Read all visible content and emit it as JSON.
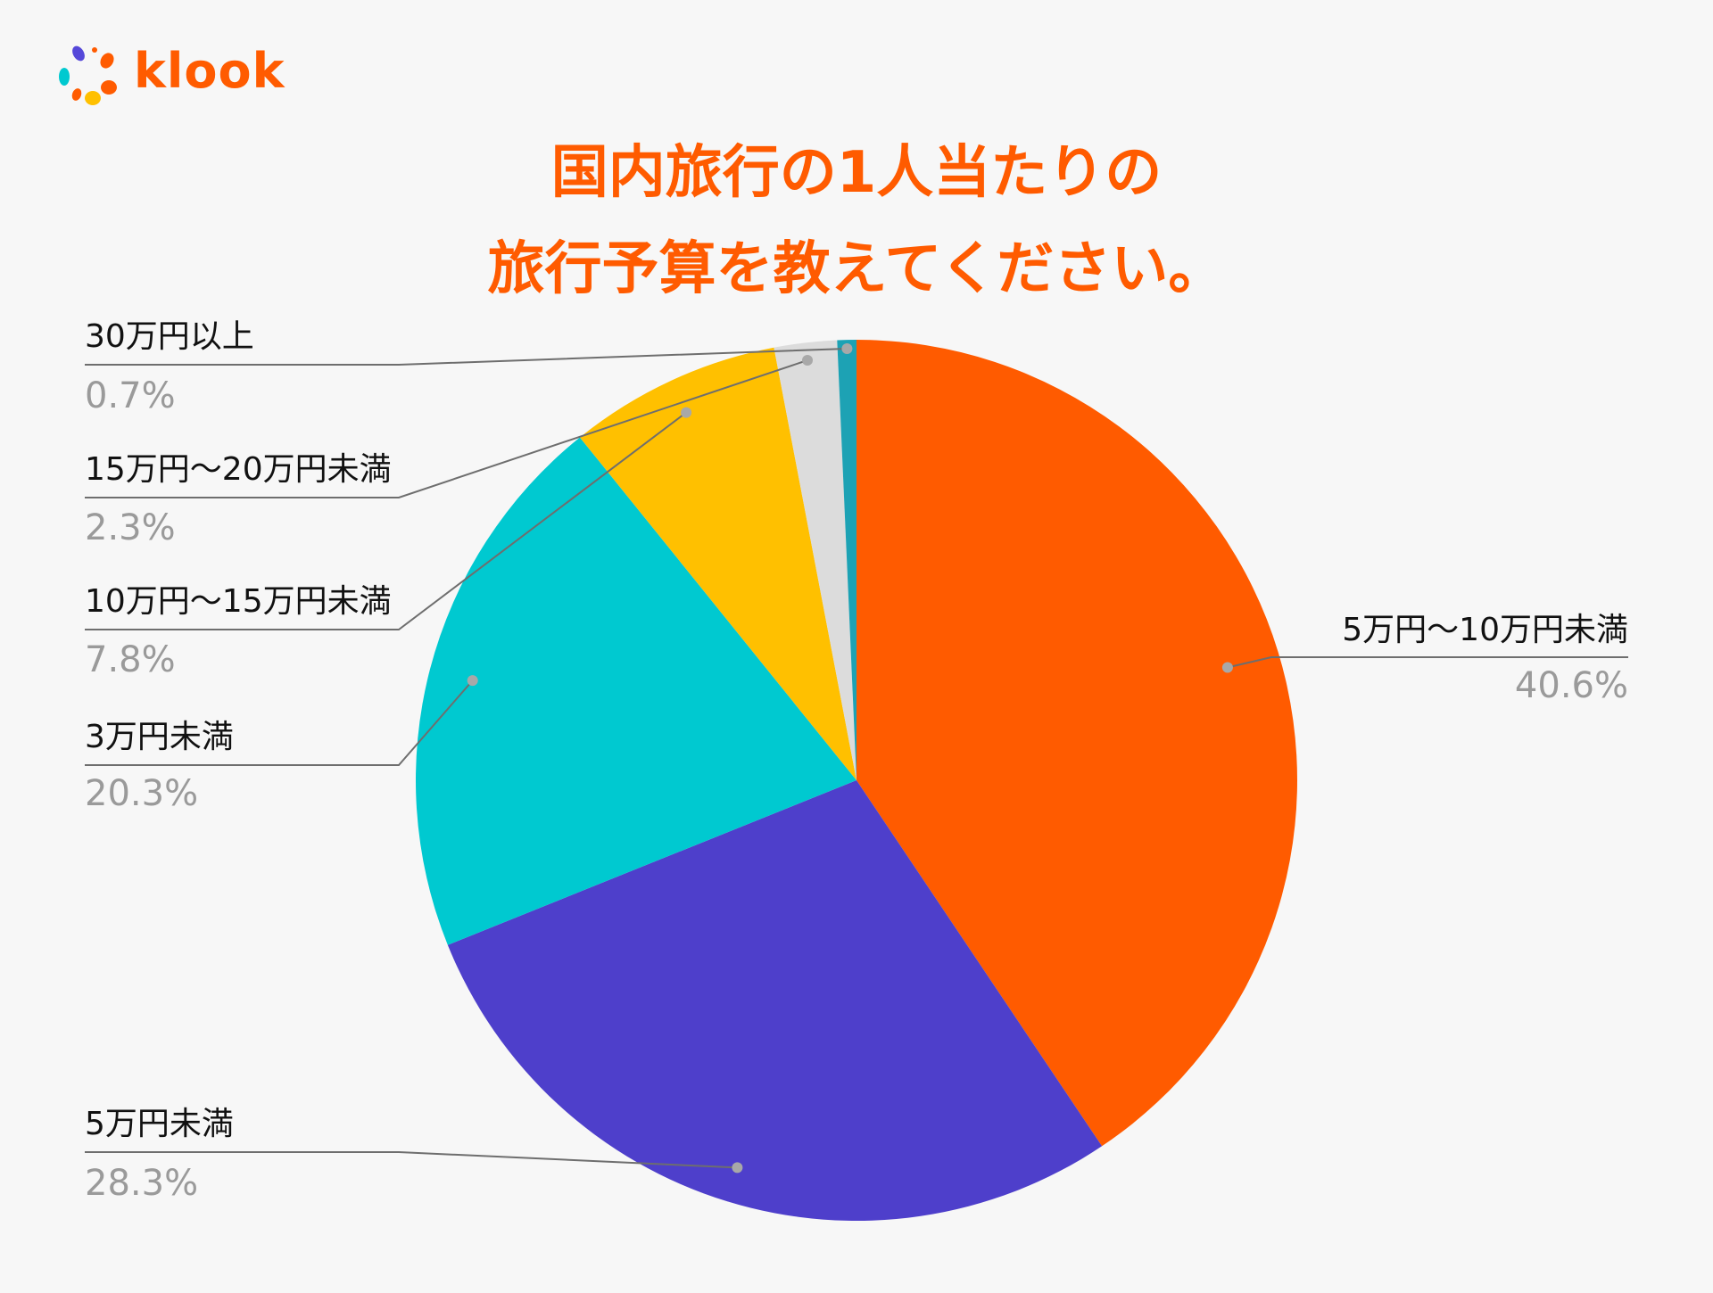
{
  "brand": {
    "name": "klook",
    "colors": {
      "accent": "#ff5b00"
    }
  },
  "title": {
    "line1": "国内旅行の1人当たりの",
    "line2": "旅行予算を教えてください。"
  },
  "chart_data": {
    "type": "pie",
    "start_angle_deg": 0,
    "direction": "clockwise",
    "slices": [
      {
        "label": "5万円〜10万円未満",
        "value": 40.6,
        "display": "40.6%",
        "color": "#ff5b00"
      },
      {
        "label": "5万円未満",
        "value": 28.3,
        "display": "28.3%",
        "color": "#4e3fcb"
      },
      {
        "label": "3万円未満",
        "value": 20.3,
        "display": "20.3%",
        "color": "#00c9d0"
      },
      {
        "label": "10万円〜15万円未満",
        "value": 7.8,
        "display": "7.8%",
        "color": "#ffc000"
      },
      {
        "label": "15万円〜20万円未満",
        "value": 2.3,
        "display": "2.3%",
        "color": "#dcdcdc"
      },
      {
        "label": "30万円以上",
        "value": 0.7,
        "display": "0.7%",
        "color": "#1da2b4"
      }
    ]
  }
}
